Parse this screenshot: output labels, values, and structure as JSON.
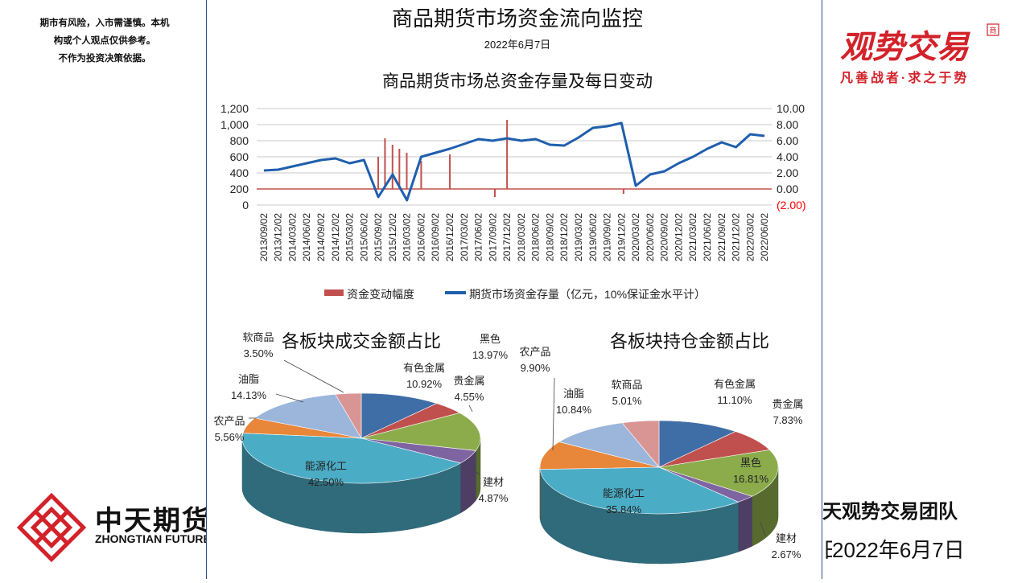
{
  "disclaimer": [
    "期市有风险，入市需谨慎。本机",
    "构或个人观点仅供参考。",
    "不作为投资决策依据。"
  ],
  "brand": {
    "name": "观势交易",
    "seal": "商",
    "slogan": "凡善战者·求之于势"
  },
  "company": {
    "cn": "中天期货",
    "en": "ZHONGTIAN FUTURES"
  },
  "footer": {
    "team": "天观势交易团队",
    "date": "2022年6月7日",
    "date_prefix": "日："
  },
  "report": {
    "title": "商品期货市场资金流向监控",
    "date": "2022年6月7日"
  },
  "colors": {
    "line": "#1f5fad",
    "bar": "#c0504d",
    "neg": "#ff0000"
  },
  "chart_data": [
    {
      "type": "line",
      "title": "商品期货市场总资金存量及每日变动",
      "x": [
        "2013/09/02",
        "2013/12/02",
        "2014/03/02",
        "2014/06/02",
        "2014/09/02",
        "2014/12/02",
        "2015/03/02",
        "2015/06/02",
        "2015/09/02",
        "2015/12/02",
        "2016/03/02",
        "2016/06/02",
        "2016/09/02",
        "2016/12/02",
        "2017/03/02",
        "2017/06/02",
        "2017/09/02",
        "2017/12/02",
        "2018/03/02",
        "2018/06/02",
        "2018/09/02",
        "2018/12/02",
        "2019/03/02",
        "2019/06/02",
        "2019/09/02",
        "2019/12/02",
        "2020/03/02",
        "2020/06/02",
        "2020/09/02",
        "2020/12/02",
        "2021/03/02",
        "2021/06/02",
        "2021/09/02",
        "2021/12/02",
        "2022/03/02",
        "2022/06/02"
      ],
      "left_axis": {
        "ticks": [
          "1,200",
          "1,000",
          "800",
          "600",
          "400",
          "200",
          "0"
        ],
        "ylim": [
          0,
          1200
        ]
      },
      "right_axis": {
        "ticks": [
          "10.00",
          "8.00",
          "6.00",
          "4.00",
          "2.00",
          "0.00",
          "(2.00)"
        ],
        "ylim": [
          -2,
          10
        ],
        "negative_color": "#ff0000"
      },
      "series": [
        {
          "name": "资金变动幅度",
          "axis": "right",
          "kind": "bar",
          "color": "#c0504d",
          "spikes": [
            [
              "2015/09/02",
              4.0
            ],
            [
              "2015/10/15",
              6.3
            ],
            [
              "2015/12/02",
              5.5
            ],
            [
              "2016/01/15",
              5.0
            ],
            [
              "2016/03/02",
              4.5
            ],
            [
              "2016/06/02",
              3.5
            ],
            [
              "2016/12/02",
              4.3
            ],
            [
              "2017/09/15",
              -1.0
            ],
            [
              "2017/12/02",
              8.6
            ],
            [
              "2019/12/15",
              -0.6
            ]
          ]
        },
        {
          "name": "期货市场资金存量（亿元，10%保证金水平计）",
          "axis": "left",
          "kind": "line",
          "color": "#1f5fad",
          "values": [
            430,
            440,
            480,
            520,
            560,
            580,
            520,
            560,
            100,
            380,
            60,
            600,
            650,
            700,
            760,
            820,
            800,
            830,
            800,
            820,
            750,
            740,
            840,
            960,
            980,
            1020,
            240,
            380,
            420,
            520,
            600,
            700,
            780,
            720,
            880,
            860
          ]
        }
      ],
      "legend_position": "bottom",
      "grid": true
    },
    {
      "type": "pie",
      "title": "各板块成交金额占比",
      "slices": [
        {
          "label": "有色金属",
          "value": 10.92,
          "display": "10.92%",
          "color": "#3f6ea6"
        },
        {
          "label": "贵金属",
          "value": 4.55,
          "display": "4.55%",
          "color": "#c0504d"
        },
        {
          "label": "黑色",
          "value": 13.97,
          "display": "13.97%",
          "color": "#8cac4c"
        },
        {
          "label": "建材",
          "value": 4.87,
          "display": "4.87%",
          "color": "#7e64a0"
        },
        {
          "label": "能源化工",
          "value": 42.5,
          "display": "42.50%",
          "color": "#4bacc6"
        },
        {
          "label": "农产品",
          "value": 5.56,
          "display": "5.56%",
          "color": "#e8863a"
        },
        {
          "label": "油脂",
          "value": 14.13,
          "display": "14.13%",
          "color": "#9bb5db"
        },
        {
          "label": "软商品",
          "value": 3.5,
          "display": "3.50%",
          "color": "#d99594"
        }
      ]
    },
    {
      "type": "pie",
      "title": "各板块持仓金额占比",
      "slices": [
        {
          "label": "有色金属",
          "value": 11.1,
          "display": "11.10%",
          "color": "#3f6ea6"
        },
        {
          "label": "贵金属",
          "value": 7.83,
          "display": "7.83%",
          "color": "#c0504d"
        },
        {
          "label": "黑色",
          "value": 16.81,
          "display": "16.81%",
          "color": "#8cac4c"
        },
        {
          "label": "建材",
          "value": 2.67,
          "display": "2.67%",
          "color": "#7e64a0"
        },
        {
          "label": "能源化工",
          "value": 35.84,
          "display": "35.84%",
          "color": "#4bacc6"
        },
        {
          "label": "农产品",
          "value": 9.9,
          "display": "9.90%",
          "color": "#e8863a"
        },
        {
          "label": "油脂",
          "value": 10.84,
          "display": "10.84%",
          "color": "#9bb5db"
        },
        {
          "label": "软商品",
          "value": 5.01,
          "display": "5.01%",
          "color": "#d99594"
        }
      ]
    }
  ]
}
